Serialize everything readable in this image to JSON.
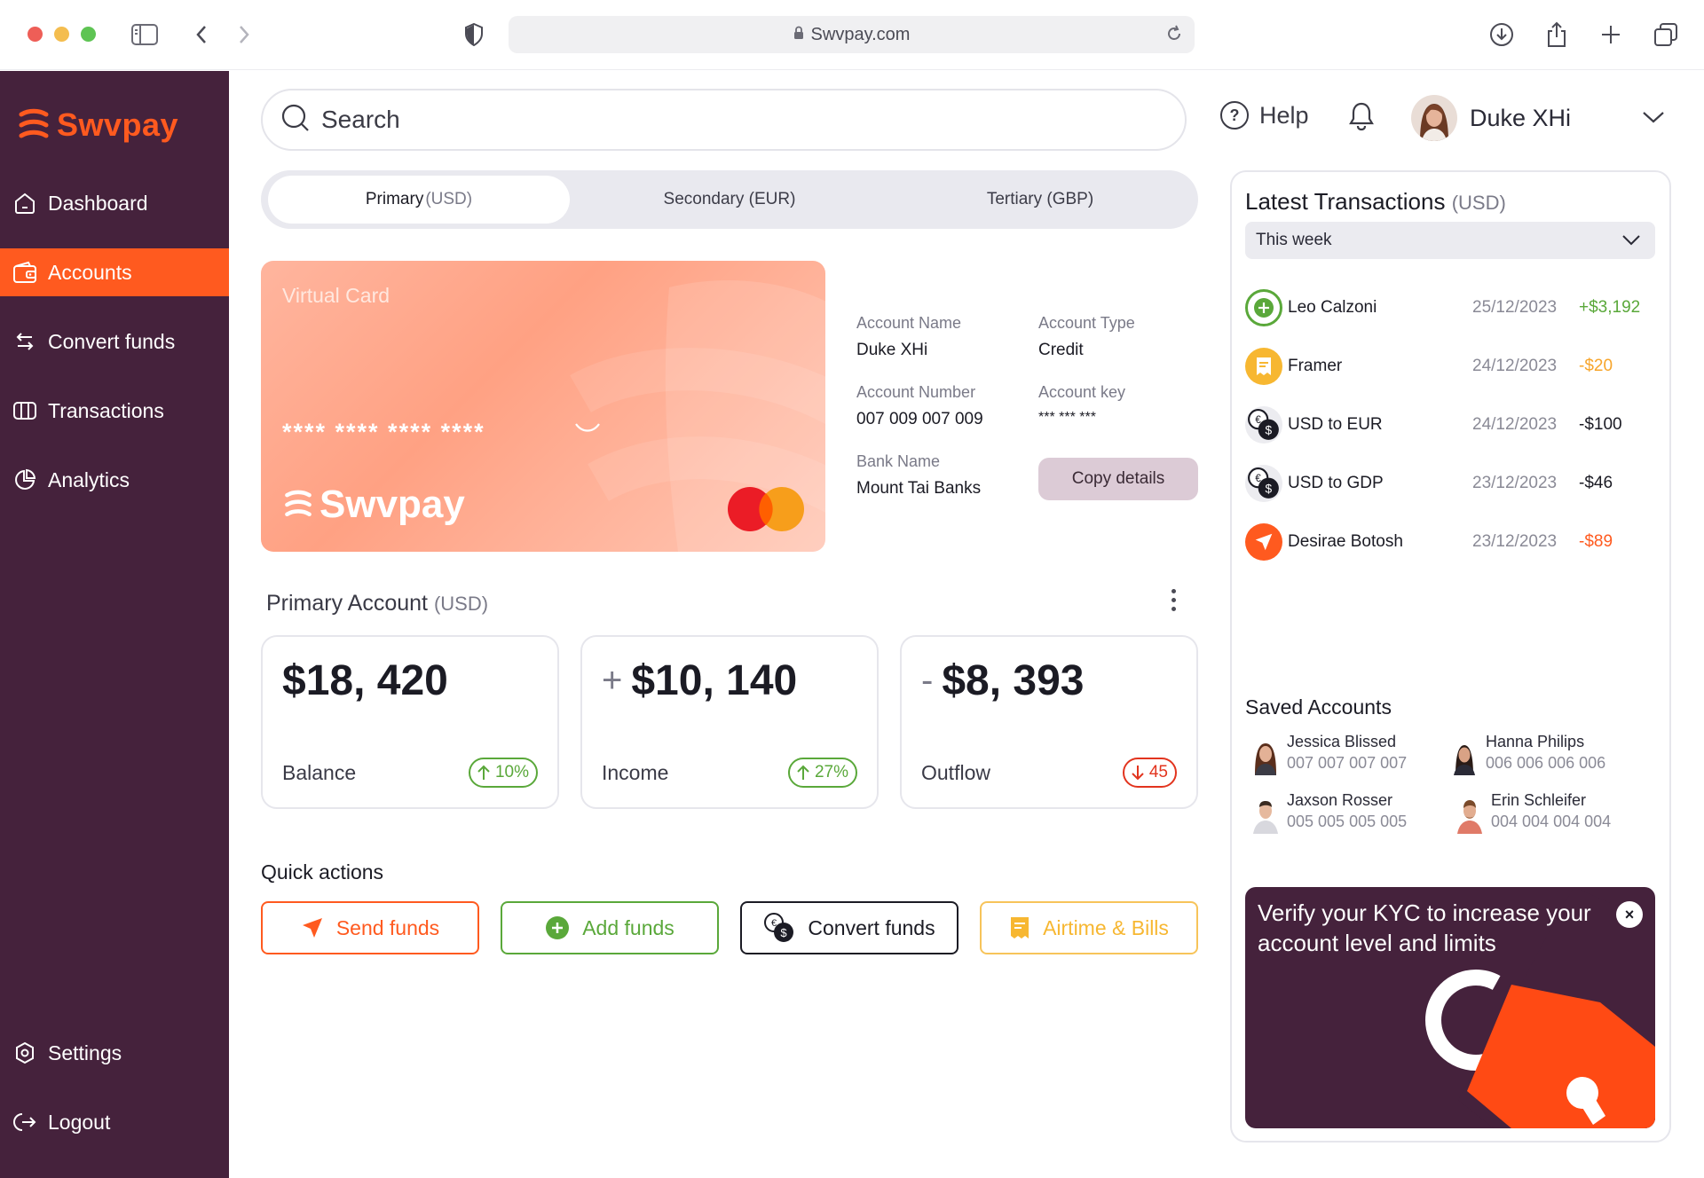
{
  "browser": {
    "url": "Swvpay.com"
  },
  "app": {
    "brand": "Swvpay",
    "accent": "#ff5a1f",
    "sidebar_bg": "#45223c"
  },
  "sidebar": {
    "items": [
      {
        "label": "Dashboard",
        "icon": "home-icon"
      },
      {
        "label": "Accounts",
        "icon": "wallet-icon",
        "active": true
      },
      {
        "label": "Convert funds",
        "icon": "swap-icon"
      },
      {
        "label": "Transactions",
        "icon": "card-icon"
      },
      {
        "label": "Analytics",
        "icon": "pie-chart-icon"
      }
    ],
    "bottom": [
      {
        "label": "Settings",
        "icon": "gear-icon"
      },
      {
        "label": "Logout",
        "icon": "logout-icon"
      }
    ]
  },
  "header": {
    "search_placeholder": "Search",
    "help_label": "Help",
    "user_name": "Duke XHi"
  },
  "account_tabs": [
    {
      "name": "Primary",
      "currency": "(USD)",
      "active": true
    },
    {
      "name": "Secondary",
      "currency": "(EUR)"
    },
    {
      "name": "Tertiary",
      "currency": "(GBP)"
    }
  ],
  "virtual_card": {
    "title": "Virtual Card",
    "masked_number": "**** **** **** ****",
    "brand": "Swvpay"
  },
  "account_details": {
    "name_label": "Account Name",
    "name_value": "Duke XHi",
    "type_label": "Account Type",
    "type_value": "Credit",
    "number_label": "Account Number",
    "number_value": "007 009 007 009",
    "key_label": "Account key",
    "key_value": "*** *** ***",
    "bank_label": "Bank Name",
    "bank_value": "Mount Tai Banks",
    "copy_button": "Copy details"
  },
  "primary_account": {
    "title": "Primary Account",
    "currency": "(USD)",
    "stats": [
      {
        "sign": "",
        "amount": "$18, 420",
        "label": "Balance",
        "change": "10%",
        "direction": "up"
      },
      {
        "sign": "+",
        "amount": "$10, 140",
        "label": "Income",
        "change": "27%",
        "direction": "up"
      },
      {
        "sign": "-",
        "amount": "$8, 393",
        "label": "Outflow",
        "change": "45",
        "direction": "down"
      }
    ]
  },
  "quick_actions": {
    "title": "Quick actions",
    "buttons": [
      {
        "label": "Send funds",
        "color": "#ff5a1f",
        "icon": "send-icon"
      },
      {
        "label": "Add funds",
        "color": "#5aa83a",
        "icon": "plus-circle-icon"
      },
      {
        "label": "Convert funds",
        "color": "#1b1b24",
        "icon": "coins-icon"
      },
      {
        "label": "Airtime & Bills",
        "color": "#f7b731",
        "icon": "receipt-icon"
      }
    ]
  },
  "latest_transactions": {
    "title": "Latest Transactions",
    "currency": "(USD)",
    "period": "This week",
    "items": [
      {
        "name": "Leo Calzoni",
        "date": "25/12/2023",
        "amount": "+$3,192",
        "color": "#5aa83a"
      },
      {
        "name": "Framer",
        "date": "24/12/2023",
        "amount": "-$20",
        "color": "#f7a52b"
      },
      {
        "name": "USD to EUR",
        "date": "24/12/2023",
        "amount": "-$100",
        "color": "#1b1b24"
      },
      {
        "name": "USD to GDP",
        "date": "23/12/2023",
        "amount": "-$46",
        "color": "#1b1b24"
      },
      {
        "name": "Desirae Botosh",
        "date": "23/12/2023",
        "amount": "-$89",
        "color": "#ff5a1f"
      }
    ]
  },
  "saved_accounts": {
    "title": "Saved Accounts",
    "items": [
      {
        "name": "Jessica Blissed",
        "number": "007 007 007 007"
      },
      {
        "name": "Hanna Philips",
        "number": "006 006 006 006"
      },
      {
        "name": "Jaxson Rosser",
        "number": "005 005 005 005"
      },
      {
        "name": "Erin Schleifer",
        "number": "004 004 004 004"
      }
    ]
  },
  "kyc_banner": {
    "text": "Verify your KYC to increase your account level and limits",
    "close": "×"
  }
}
